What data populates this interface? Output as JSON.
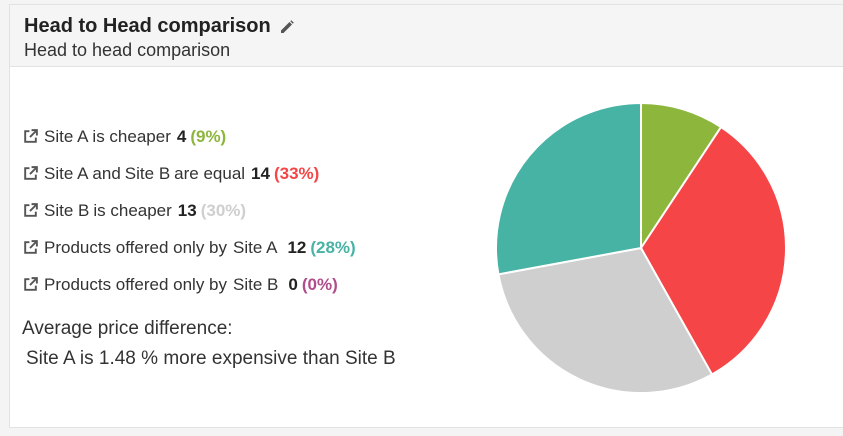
{
  "header": {
    "title": "Head to Head comparison",
    "subtitle": "Head to head comparison",
    "edit_icon": "pencil-icon"
  },
  "sites": {
    "a": "Site A",
    "b": "Site B"
  },
  "stats": [
    {
      "pre": "",
      "site1": "Site A",
      "mid": "is cheaper",
      "site2": "",
      "post": "",
      "count": "4",
      "percent": "(9%)",
      "color": "#8db63c"
    },
    {
      "pre": "",
      "site1": "Site A",
      "mid": "and",
      "site2": "Site B",
      "post": "are equal",
      "count": "14",
      "percent": "(33%)",
      "color": "#f64547"
    },
    {
      "pre": "",
      "site1": "Site B",
      "mid": "is cheaper",
      "site2": "",
      "post": "",
      "count": "13",
      "percent": "(30%)",
      "color": "#cfcfcf"
    },
    {
      "pre": "Products offered only by",
      "site1": "Site A",
      "mid": "",
      "site2": "",
      "post": "",
      "count": "12",
      "percent": "(28%)",
      "color": "#46b3a4"
    },
    {
      "pre": "Products offered only by",
      "site1": "Site B",
      "mid": "",
      "site2": "",
      "post": "",
      "count": "0",
      "percent": "(0%)",
      "color": "#b04d8c"
    }
  ],
  "average": {
    "label": "Average price difference:",
    "site1": "Site A",
    "text": "is 1.48 % more expensive than",
    "site2": "Site B"
  },
  "chart_data": {
    "type": "pie",
    "labels": [
      "Site A is cheaper",
      "Site A and Site B are equal",
      "Site B is cheaper",
      "Products offered only by Site A",
      "Products offered only by Site B"
    ],
    "values": [
      4,
      14,
      13,
      12,
      0
    ],
    "colors": [
      "#8db63c",
      "#f64547",
      "#cfcfcf",
      "#46b3a4",
      "#b04d8c"
    ]
  }
}
